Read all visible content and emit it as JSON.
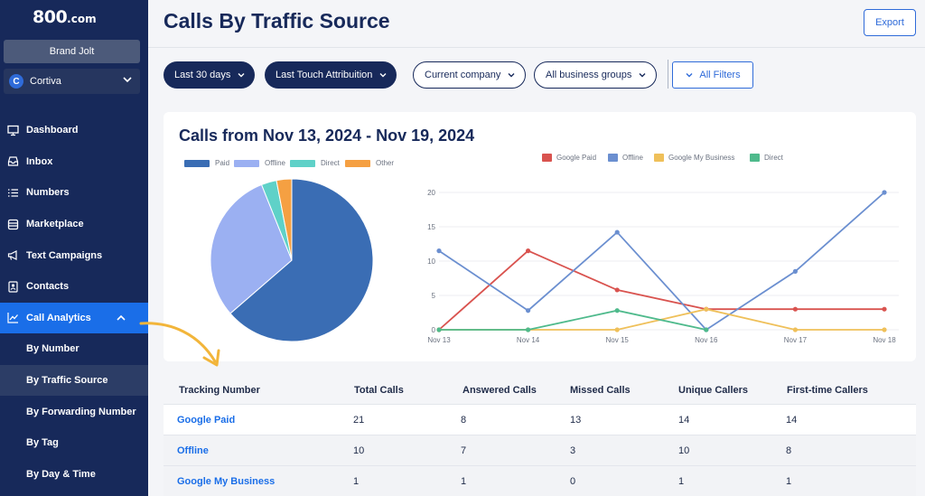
{
  "app": {
    "logo_main": "800",
    "logo_suffix": ".com",
    "brand": "Brand Jolt",
    "company": "Cortiva",
    "company_initial": "C"
  },
  "sidebar": {
    "items": [
      {
        "label": "Dashboard",
        "icon": "monitor-icon"
      },
      {
        "label": "Inbox",
        "icon": "inbox-icon"
      },
      {
        "label": "Numbers",
        "icon": "list-icon"
      },
      {
        "label": "Marketplace",
        "icon": "store-icon"
      },
      {
        "label": "Text Campaigns",
        "icon": "megaphone-icon"
      },
      {
        "label": "Contacts",
        "icon": "contacts-icon"
      },
      {
        "label": "Call Analytics",
        "icon": "chart-line-icon"
      }
    ],
    "subitems": [
      "By Number",
      "By Traffic Source",
      "By Forwarding Number",
      "By Tag",
      "By Day & Time"
    ]
  },
  "header": {
    "title": "Calls By Traffic Source",
    "export_label": "Export"
  },
  "filters": {
    "date": "Last 30 days",
    "attribution": "Last Touch Attribuition",
    "company": "Current company",
    "groups": "All business groups",
    "all": "All Filters"
  },
  "chart_title": "Calls from Nov 13, 2024 - Nov 19, 2024",
  "colors": {
    "paid": "#3a6db4",
    "offline": "#9bb0f2",
    "direct": "#5fd1c8",
    "other": "#f5a042",
    "google_paid": "#d9534f",
    "offline_line": "#6b8fd0",
    "gmb": "#efc05a",
    "direct_line": "#4fba8c"
  },
  "chart_data": [
    {
      "type": "pie",
      "legend": [
        "Paid",
        "Offline",
        "Direct",
        "Other"
      ],
      "values": [
        21,
        10,
        1,
        1
      ]
    },
    {
      "type": "line",
      "categories": [
        "Nov 13",
        "Nov 14",
        "Nov 15",
        "Nov 16",
        "Nov 17",
        "Nov 18"
      ],
      "ylim": [
        0,
        20
      ],
      "yticks": [
        0,
        5,
        10,
        15,
        20
      ],
      "series": [
        {
          "name": "Google Paid",
          "values": [
            0,
            11.5,
            5.8,
            3,
            3,
            3
          ]
        },
        {
          "name": "Offline",
          "values": [
            11.5,
            2.8,
            14.2,
            0,
            8.5,
            20
          ]
        },
        {
          "name": "Google My Business",
          "values": [
            0,
            0,
            0,
            3,
            0,
            0
          ]
        },
        {
          "name": "Direct",
          "values": [
            0,
            0,
            2.8,
            0,
            null,
            null
          ]
        }
      ]
    }
  ],
  "table": {
    "headers": [
      "Tracking Number",
      "Total Calls",
      "Answered Calls",
      "Missed Calls",
      "Unique Callers",
      "First-time Callers"
    ],
    "rows": [
      [
        "Google Paid",
        "21",
        "8",
        "13",
        "14",
        "14"
      ],
      [
        "Offline",
        "10",
        "7",
        "3",
        "10",
        "8"
      ],
      [
        "Google My Business",
        "1",
        "1",
        "0",
        "1",
        "1"
      ]
    ]
  }
}
